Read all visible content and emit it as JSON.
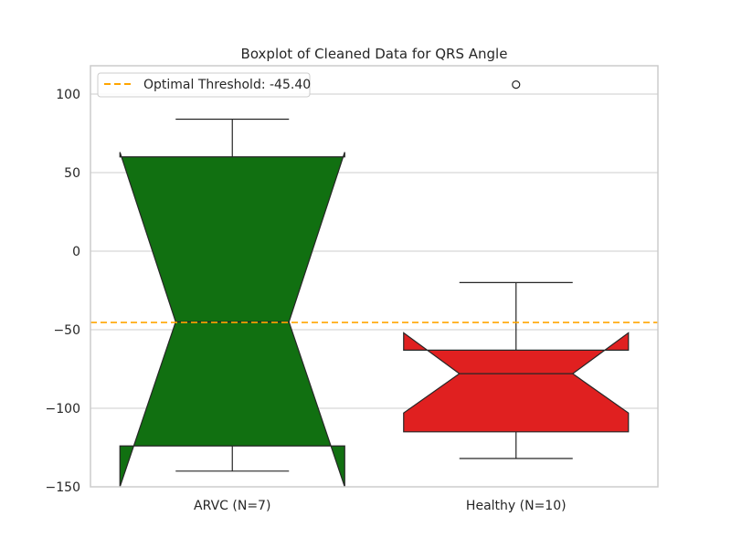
{
  "chart_data": {
    "type": "box",
    "title": "Boxplot of Cleaned Data for QRS Angle",
    "xlabel": "",
    "ylabel": "",
    "ylim": [
      -150,
      118
    ],
    "yticks": [
      100,
      50,
      0,
      -50,
      -100,
      -150
    ],
    "grid": true,
    "notched": true,
    "legend": {
      "placement": "top-left",
      "entries": [
        "Optimal Threshold: -45.40"
      ]
    },
    "threshold": {
      "value": -45.4,
      "label": "Optimal Threshold: -45.40",
      "color": "#FFA500",
      "style": "dashed"
    },
    "categories": [
      "ARVC (N=7)",
      "Healthy (N=10)"
    ],
    "boxes": [
      {
        "category": "ARVC (N=7)",
        "color": "#117011",
        "whisker_low": -140,
        "q1": -124,
        "median": -45,
        "q3": 60,
        "whisker_high": 84,
        "notch_low": -150,
        "notch_high": 63,
        "outliers": []
      },
      {
        "category": "Healthy (N=10)",
        "color": "#E02020",
        "whisker_low": -132,
        "q1": -115,
        "median": -78,
        "q3": -63,
        "whisker_high": -20,
        "notch_low": -103,
        "notch_high": -52,
        "outliers": [
          106
        ]
      }
    ]
  }
}
